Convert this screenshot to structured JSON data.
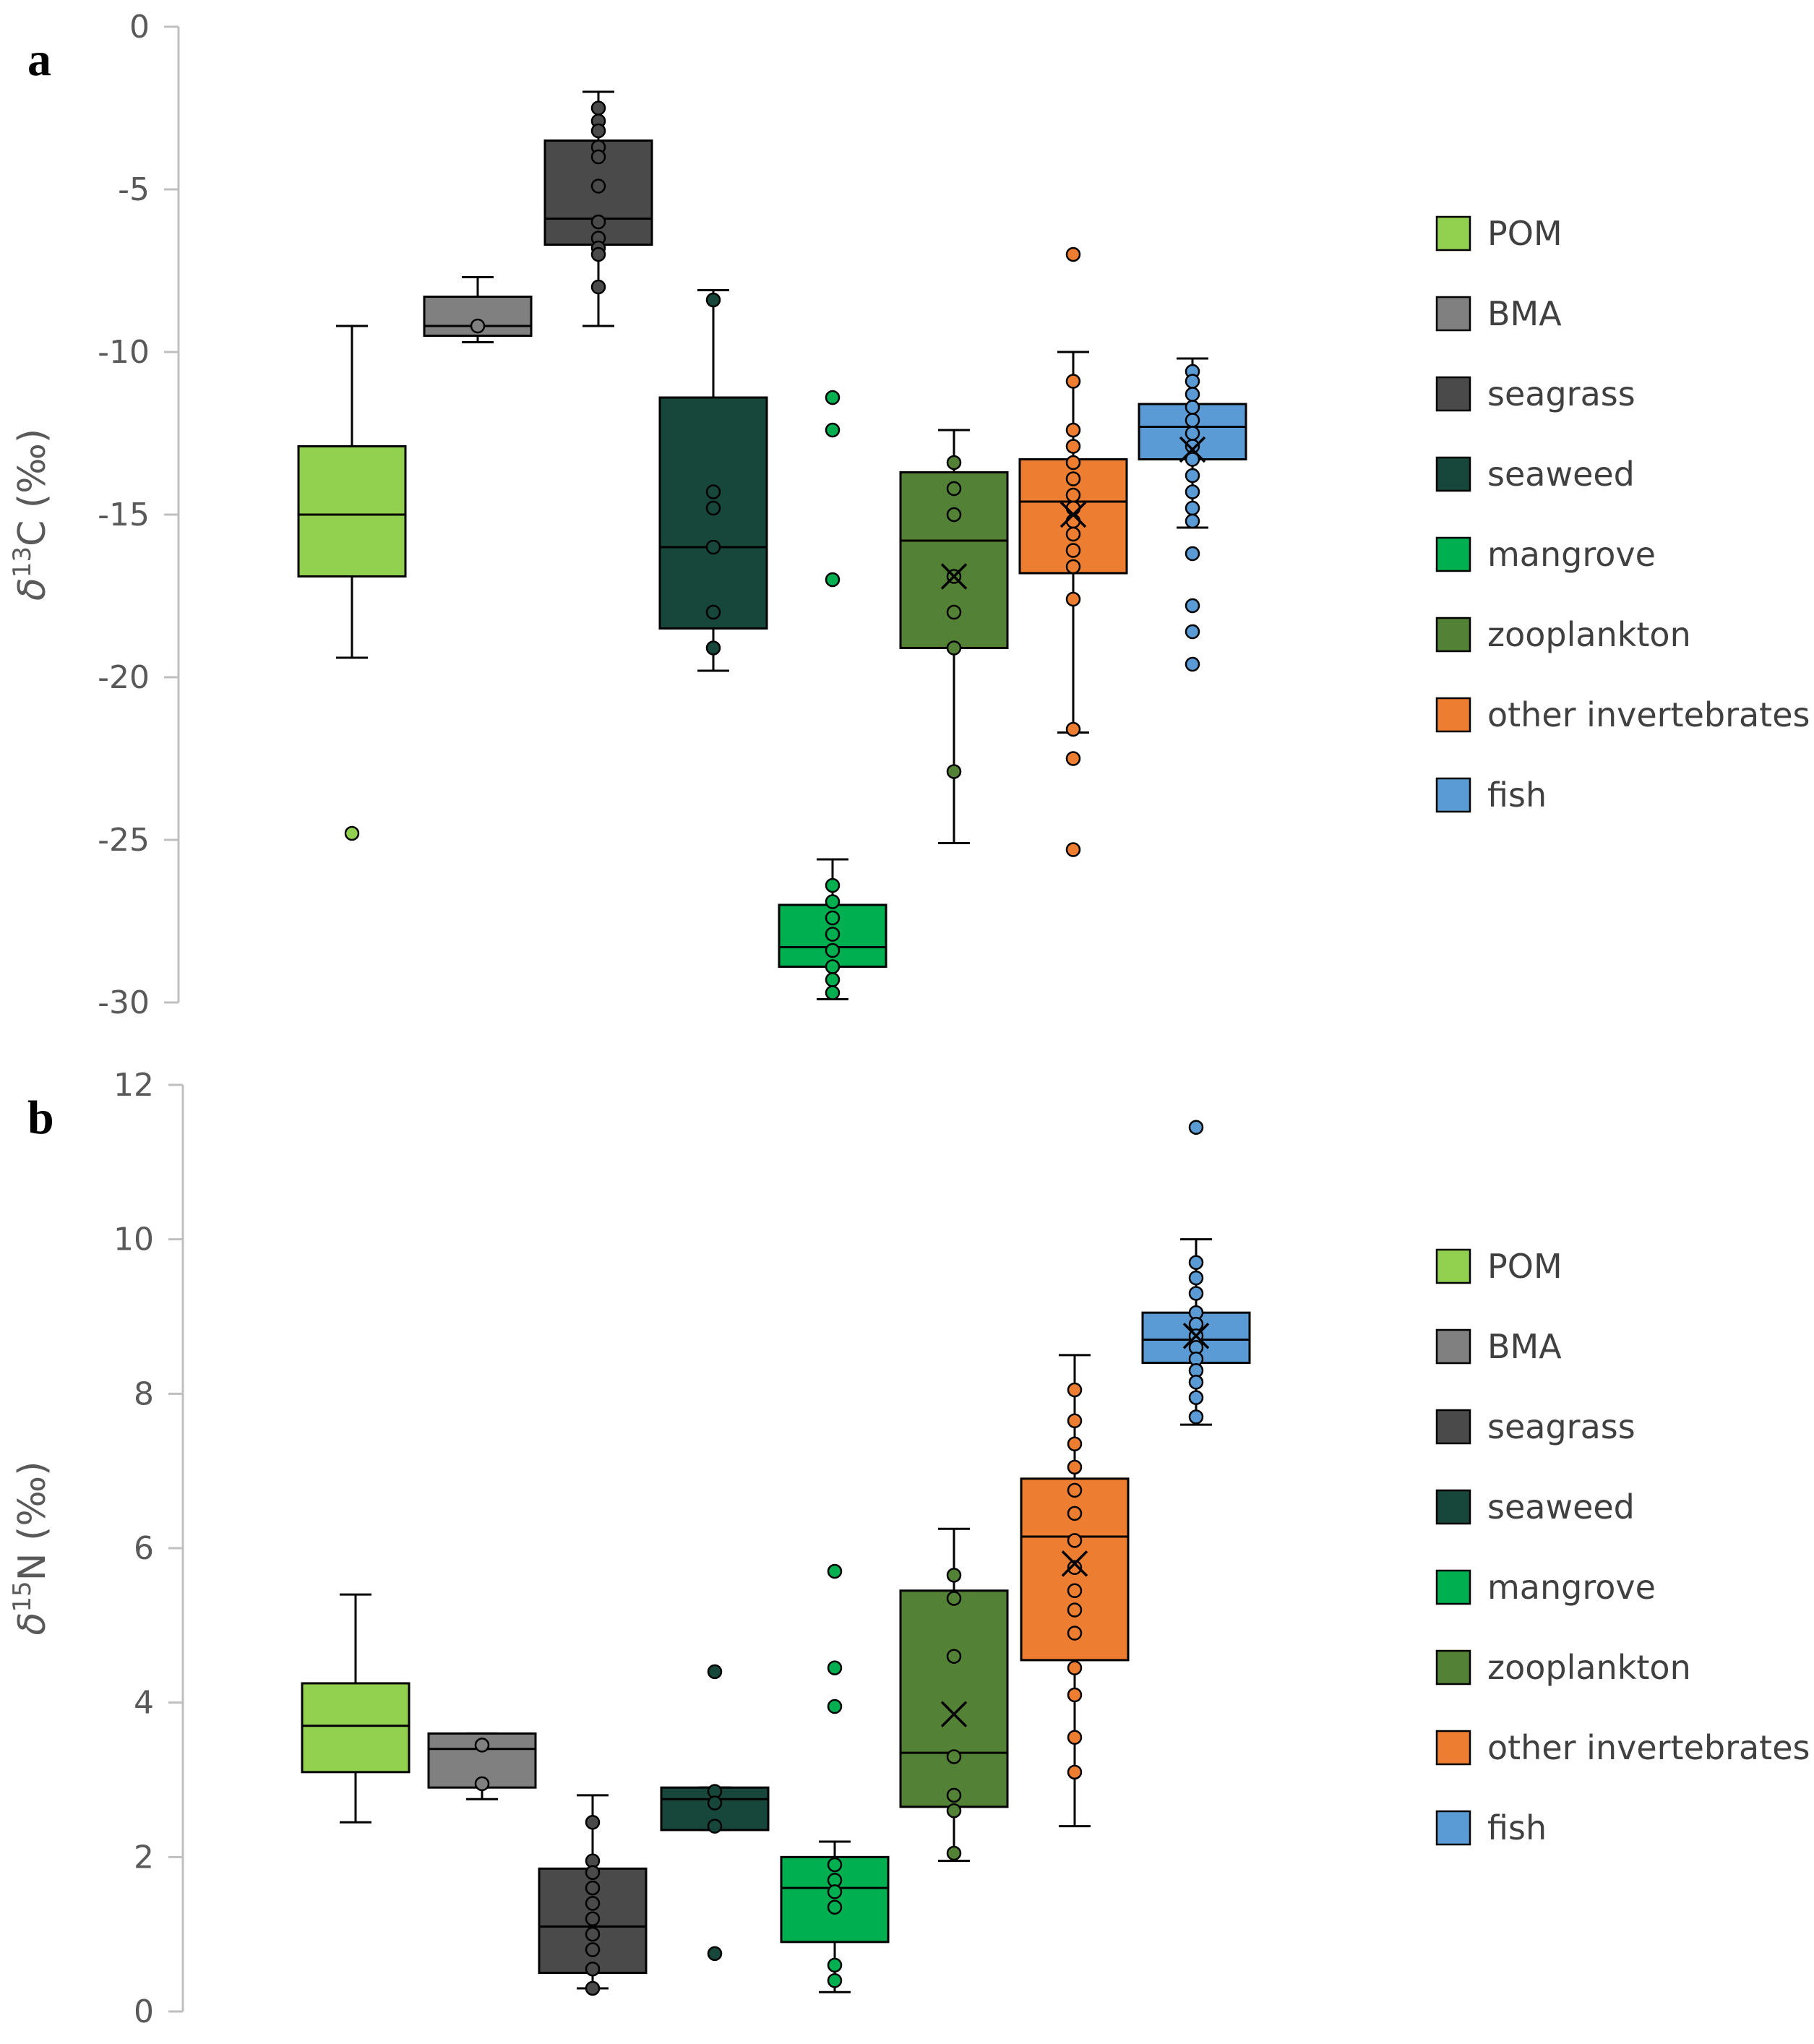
{
  "chart_data": [
    {
      "type": "box",
      "panel_label": "a",
      "ylabel_symbol": "δ",
      "ylabel_superscript": "13",
      "ylabel_rest": "C (‰)",
      "ylim": [
        -30,
        0
      ],
      "yticks": [
        0,
        -5,
        -10,
        -15,
        -20,
        -25,
        -30
      ],
      "ytick_labels": [
        "0",
        "-5",
        "-10",
        "-15",
        "-20",
        "-25",
        "-30"
      ],
      "series": [
        {
          "name": "POM",
          "color": "#92d050",
          "whisker_low": -19.4,
          "q1": -16.9,
          "median": -15.0,
          "q3": -12.9,
          "whisker_high": -9.2,
          "mean": null,
          "points": [
            -24.8
          ]
        },
        {
          "name": "BMA",
          "color": "#808080",
          "whisker_low": -9.7,
          "q1": -9.5,
          "median": -9.2,
          "q3": -8.3,
          "whisker_high": -7.7,
          "mean": null,
          "points": [
            -9.2
          ]
        },
        {
          "name": "seagrass",
          "color": "#4a4a4a",
          "whisker_low": -9.2,
          "q1": -6.7,
          "median": -5.9,
          "q3": -3.5,
          "whisker_high": -2.0,
          "mean": null,
          "points": [
            -2.5,
            -2.9,
            -3.2,
            -3.7,
            -4.0,
            -4.9,
            -6.0,
            -6.5,
            -6.8,
            -7.0,
            -8.0
          ]
        },
        {
          "name": "seaweed",
          "color": "#17473a",
          "whisker_low": -19.8,
          "q1": -18.5,
          "median": -16.0,
          "q3": -11.4,
          "whisker_high": -8.1,
          "mean": null,
          "points": [
            -8.4,
            -14.3,
            -14.8,
            -16.0,
            -18.0,
            -19.1
          ]
        },
        {
          "name": "mangrove",
          "color": "#00b050",
          "whisker_low": -29.9,
          "q1": -28.9,
          "median": -28.3,
          "q3": -27.0,
          "whisker_high": -25.6,
          "mean": null,
          "points": [
            -11.4,
            -12.4,
            -17.0,
            -26.4,
            -26.9,
            -27.4,
            -27.9,
            -28.4,
            -28.9,
            -29.3,
            -29.7
          ]
        },
        {
          "name": "zooplankton",
          "color": "#538135",
          "whisker_low": -25.1,
          "q1": -19.1,
          "median": -15.8,
          "q3": -13.7,
          "whisker_high": -12.4,
          "mean": -16.9,
          "points": [
            -13.4,
            -14.2,
            -15.0,
            -16.9,
            -18.0,
            -19.1,
            -22.9
          ]
        },
        {
          "name": "other invertebrates",
          "color": "#ed7d31",
          "whisker_low": -21.7,
          "q1": -16.8,
          "median": -14.6,
          "q3": -13.3,
          "whisker_high": -10.0,
          "mean": -15.0,
          "points": [
            -7.0,
            -10.9,
            -12.4,
            -12.9,
            -13.4,
            -13.9,
            -14.4,
            -14.8,
            -15.2,
            -15.6,
            -16.1,
            -16.6,
            -17.6,
            -21.6,
            -22.5,
            -25.3
          ]
        },
        {
          "name": "fish",
          "color": "#5b9bd5",
          "whisker_low": -15.4,
          "q1": -13.3,
          "median": -12.3,
          "q3": -11.6,
          "whisker_high": -10.2,
          "mean": -13.0,
          "points": [
            -10.6,
            -10.9,
            -11.3,
            -11.7,
            -12.1,
            -12.5,
            -12.9,
            -13.3,
            -13.8,
            -14.3,
            -14.8,
            -15.2,
            -16.2,
            -17.8,
            -18.6,
            -19.6
          ]
        }
      ],
      "legend": [
        "POM",
        "BMA",
        "seagrass",
        "seaweed",
        "mangrove",
        "zooplankton",
        "other invertebrates",
        "fish"
      ],
      "legend_position": "right"
    },
    {
      "type": "box",
      "panel_label": "b",
      "ylabel_symbol": "δ",
      "ylabel_superscript": "15",
      "ylabel_rest": "N (‰)",
      "ylim": [
        0,
        12
      ],
      "yticks": [
        0,
        2,
        4,
        6,
        8,
        10,
        12
      ],
      "ytick_labels": [
        "0",
        "2",
        "4",
        "6",
        "8",
        "10",
        "12"
      ],
      "series": [
        {
          "name": "POM",
          "color": "#92d050",
          "whisker_low": 2.45,
          "q1": 3.1,
          "median": 3.7,
          "q3": 4.25,
          "whisker_high": 5.4,
          "mean": null,
          "points": []
        },
        {
          "name": "BMA",
          "color": "#808080",
          "whisker_low": 2.75,
          "q1": 2.9,
          "median": 3.4,
          "q3": 3.6,
          "whisker_high": 3.6,
          "mean": null,
          "points": [
            3.45,
            2.95
          ]
        },
        {
          "name": "seagrass",
          "color": "#4a4a4a",
          "whisker_low": 0.3,
          "q1": 0.5,
          "median": 1.1,
          "q3": 1.85,
          "whisker_high": 2.8,
          "mean": null,
          "points": [
            2.45,
            1.95,
            1.8,
            1.6,
            1.4,
            1.2,
            1.0,
            0.8,
            0.55,
            0.3
          ]
        },
        {
          "name": "seaweed",
          "color": "#17473a",
          "whisker_low": 2.35,
          "q1": 2.35,
          "median": 2.75,
          "q3": 2.9,
          "whisker_high": 2.9,
          "mean": null,
          "points": [
            4.4,
            2.85,
            2.7,
            2.4,
            0.75
          ]
        },
        {
          "name": "mangrove",
          "color": "#00b050",
          "whisker_low": 0.25,
          "q1": 0.9,
          "median": 1.6,
          "q3": 2.0,
          "whisker_high": 2.2,
          "mean": null,
          "points": [
            5.7,
            4.45,
            3.95,
            1.9,
            1.7,
            1.55,
            1.35,
            0.6,
            0.4
          ]
        },
        {
          "name": "zooplankton",
          "color": "#538135",
          "whisker_low": 1.95,
          "q1": 2.65,
          "median": 3.35,
          "q3": 5.45,
          "whisker_high": 6.25,
          "mean": 3.85,
          "points": [
            5.65,
            5.35,
            4.6,
            3.3,
            2.8,
            2.6,
            2.05
          ]
        },
        {
          "name": "other invertebrates",
          "color": "#ed7d31",
          "whisker_low": 2.4,
          "q1": 4.55,
          "median": 6.15,
          "q3": 6.9,
          "whisker_high": 8.5,
          "mean": 5.8,
          "points": [
            8.05,
            7.65,
            7.35,
            7.05,
            6.75,
            6.45,
            6.1,
            5.75,
            5.45,
            5.2,
            4.9,
            4.45,
            4.1,
            3.55,
            3.1
          ]
        },
        {
          "name": "fish",
          "color": "#5b9bd5",
          "whisker_low": 7.6,
          "q1": 8.4,
          "median": 8.7,
          "q3": 9.05,
          "whisker_high": 10.0,
          "mean": 8.75,
          "points": [
            11.45,
            9.7,
            9.5,
            9.3,
            9.05,
            8.9,
            8.75,
            8.6,
            8.45,
            8.3,
            8.15,
            7.95,
            7.7
          ]
        }
      ],
      "legend": [
        "POM",
        "BMA",
        "seagrass",
        "seaweed",
        "mangrove",
        "zooplankton",
        "other invertebrates",
        "fish"
      ],
      "legend_position": "right"
    }
  ]
}
